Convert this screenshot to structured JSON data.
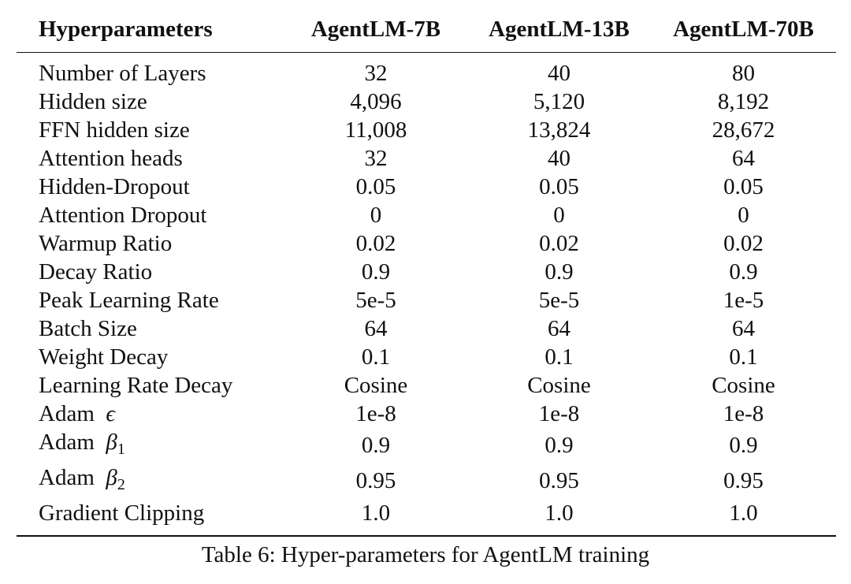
{
  "table": {
    "headers": [
      "Hyperparameters",
      "AgentLM-7B",
      "AgentLM-13B",
      "AgentLM-70B"
    ],
    "rows": [
      {
        "label": "Number of Layers",
        "values": [
          "32",
          "40",
          "80"
        ]
      },
      {
        "label": "Hidden size",
        "values": [
          "4,096",
          "5,120",
          "8,192"
        ]
      },
      {
        "label": "FFN hidden size",
        "values": [
          "11,008",
          "13,824",
          "28,672"
        ]
      },
      {
        "label": "Attention heads",
        "values": [
          "32",
          "40",
          "64"
        ]
      },
      {
        "label": "Hidden-Dropout",
        "values": [
          "0.05",
          "0.05",
          "0.05"
        ]
      },
      {
        "label": "Attention Dropout",
        "values": [
          "0",
          "0",
          "0"
        ]
      },
      {
        "label": "Warmup Ratio",
        "values": [
          "0.02",
          "0.02",
          "0.02"
        ]
      },
      {
        "label": "Decay Ratio",
        "values": [
          "0.9",
          "0.9",
          "0.9"
        ]
      },
      {
        "label": "Peak Learning Rate",
        "values": [
          "5e-5",
          "5e-5",
          "1e-5"
        ]
      },
      {
        "label": "Batch Size",
        "values": [
          "64",
          "64",
          "64"
        ]
      },
      {
        "label": "Weight Decay",
        "values": [
          "0.1",
          "0.1",
          "0.1"
        ]
      },
      {
        "label": "Learning Rate Decay",
        "values": [
          "Cosine",
          "Cosine",
          "Cosine"
        ]
      },
      {
        "label": "Adam",
        "symbol": "ϵ",
        "sub": "",
        "values": [
          "1e-8",
          "1e-8",
          "1e-8"
        ]
      },
      {
        "label": "Adam",
        "symbol": "β",
        "sub": "1",
        "values": [
          "0.9",
          "0.9",
          "0.9"
        ]
      },
      {
        "label": "Adam",
        "symbol": "β",
        "sub": "2",
        "values": [
          "0.95",
          "0.95",
          "0.95"
        ]
      },
      {
        "label": "Gradient Clipping",
        "values": [
          "1.0",
          "1.0",
          "1.0"
        ]
      }
    ]
  },
  "caption": "Table 6: Hyper-parameters for AgentLM training"
}
